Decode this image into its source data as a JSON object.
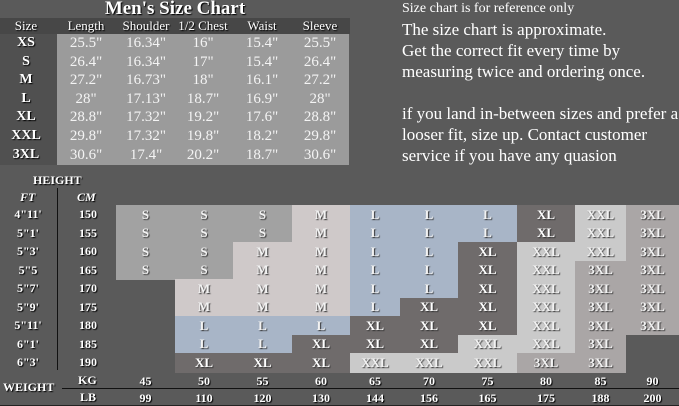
{
  "top_table": {
    "title": "Men's Size Chart",
    "headers": [
      "Size",
      "Length",
      "Shoulder",
      "1/2 Chest",
      "Waist",
      "Sleeve"
    ],
    "rows": [
      [
        "XS",
        "25.5\"",
        "16.34\"",
        "16\"",
        "15.4\"",
        "25.5\""
      ],
      [
        "S",
        "26.4\"",
        "16.34\"",
        "17\"",
        "15.4\"",
        "26.4\""
      ],
      [
        "M",
        "27.2\"",
        "16.73\"",
        "18\"",
        "16.1\"",
        "27.2\""
      ],
      [
        "L",
        "28\"",
        "17.13\"",
        "18.7\"",
        "16.9\"",
        "28\""
      ],
      [
        "XL",
        "28.8\"",
        "17.32\"",
        "19.2\"",
        "17.6\"",
        "28.8\""
      ],
      [
        "XXL",
        "29.8\"",
        "17.32\"",
        "19.8\"",
        "18.2\"",
        "29.8\""
      ],
      [
        "3XL",
        "30.6\"",
        "17.4\"",
        "20.2\"",
        "18.7\"",
        "30.6\""
      ]
    ]
  },
  "notes": {
    "line0": "Size chart is for reference only",
    "lines": [
      "The size chart is approximate.",
      "Get the correct fit every time by",
      "measuring twice and ordering once.",
      "",
      "if you land in-between sizes and prefer a",
      "looser fit, size up. Contact customer",
      "service if you have any quasion"
    ]
  },
  "grid": {
    "height_label": "HEIGHT",
    "ft_label": "FT",
    "cm_label": "CM",
    "weight_label": "WEIGHT",
    "kg_label": "KG",
    "lb_label": "LB",
    "ft": [
      "4\"11'",
      "5\"1'",
      "5\"3'",
      "5\"5",
      "5\"7'",
      "5\"9'",
      "5\"11'",
      "6\"1'",
      "6\"3'"
    ],
    "cm": [
      "150",
      "155",
      "160",
      "165",
      "170",
      "175",
      "180",
      "185",
      "190"
    ],
    "kg": [
      "45",
      "50",
      "55",
      "60",
      "65",
      "70",
      "75",
      "80",
      "85",
      "90"
    ],
    "lb": [
      "99",
      "110",
      "120",
      "130",
      "144",
      "156",
      "165",
      "175",
      "188",
      "200"
    ],
    "sizes": [
      [
        "S",
        "S",
        "S",
        "M",
        "L",
        "L",
        "L",
        "XL",
        "XXL",
        "3XL"
      ],
      [
        "S",
        "S",
        "S",
        "M",
        "L",
        "L",
        "L",
        "XL",
        "XXL",
        "3XL"
      ],
      [
        "S",
        "S",
        "M",
        "M",
        "L",
        "L",
        "XL",
        "XXL",
        "XXL",
        "3XL"
      ],
      [
        "S",
        "S",
        "M",
        "M",
        "L",
        "L",
        "XL",
        "XXL",
        "3XL",
        "3XL"
      ],
      [
        "",
        "M",
        "M",
        "M",
        "L",
        "L",
        "XL",
        "XXL",
        "3XL",
        "3XL"
      ],
      [
        "",
        "M",
        "M",
        "M",
        "L",
        "XL",
        "XL",
        "XXL",
        "3XL",
        "3XL"
      ],
      [
        "",
        "L",
        "L",
        "L",
        "XL",
        "XL",
        "XL",
        "XXL",
        "3XL",
        "3XL"
      ],
      [
        "",
        "L",
        "L",
        "XL",
        "XL",
        "XL",
        "XXL",
        "XXL",
        "3XL",
        ""
      ],
      [
        "",
        "XL",
        "XL",
        "XL",
        "XXL",
        "XXL",
        "XXL",
        "3XL",
        "3XL",
        ""
      ]
    ],
    "size_colors": {
      "S": "#a2a2a2",
      "M": "#cfc9c9",
      "L": "#a8b5c7",
      "XL": "#6f6b6b",
      "XXL": "#cacaca",
      "3XL": "#aaa6a6"
    }
  }
}
